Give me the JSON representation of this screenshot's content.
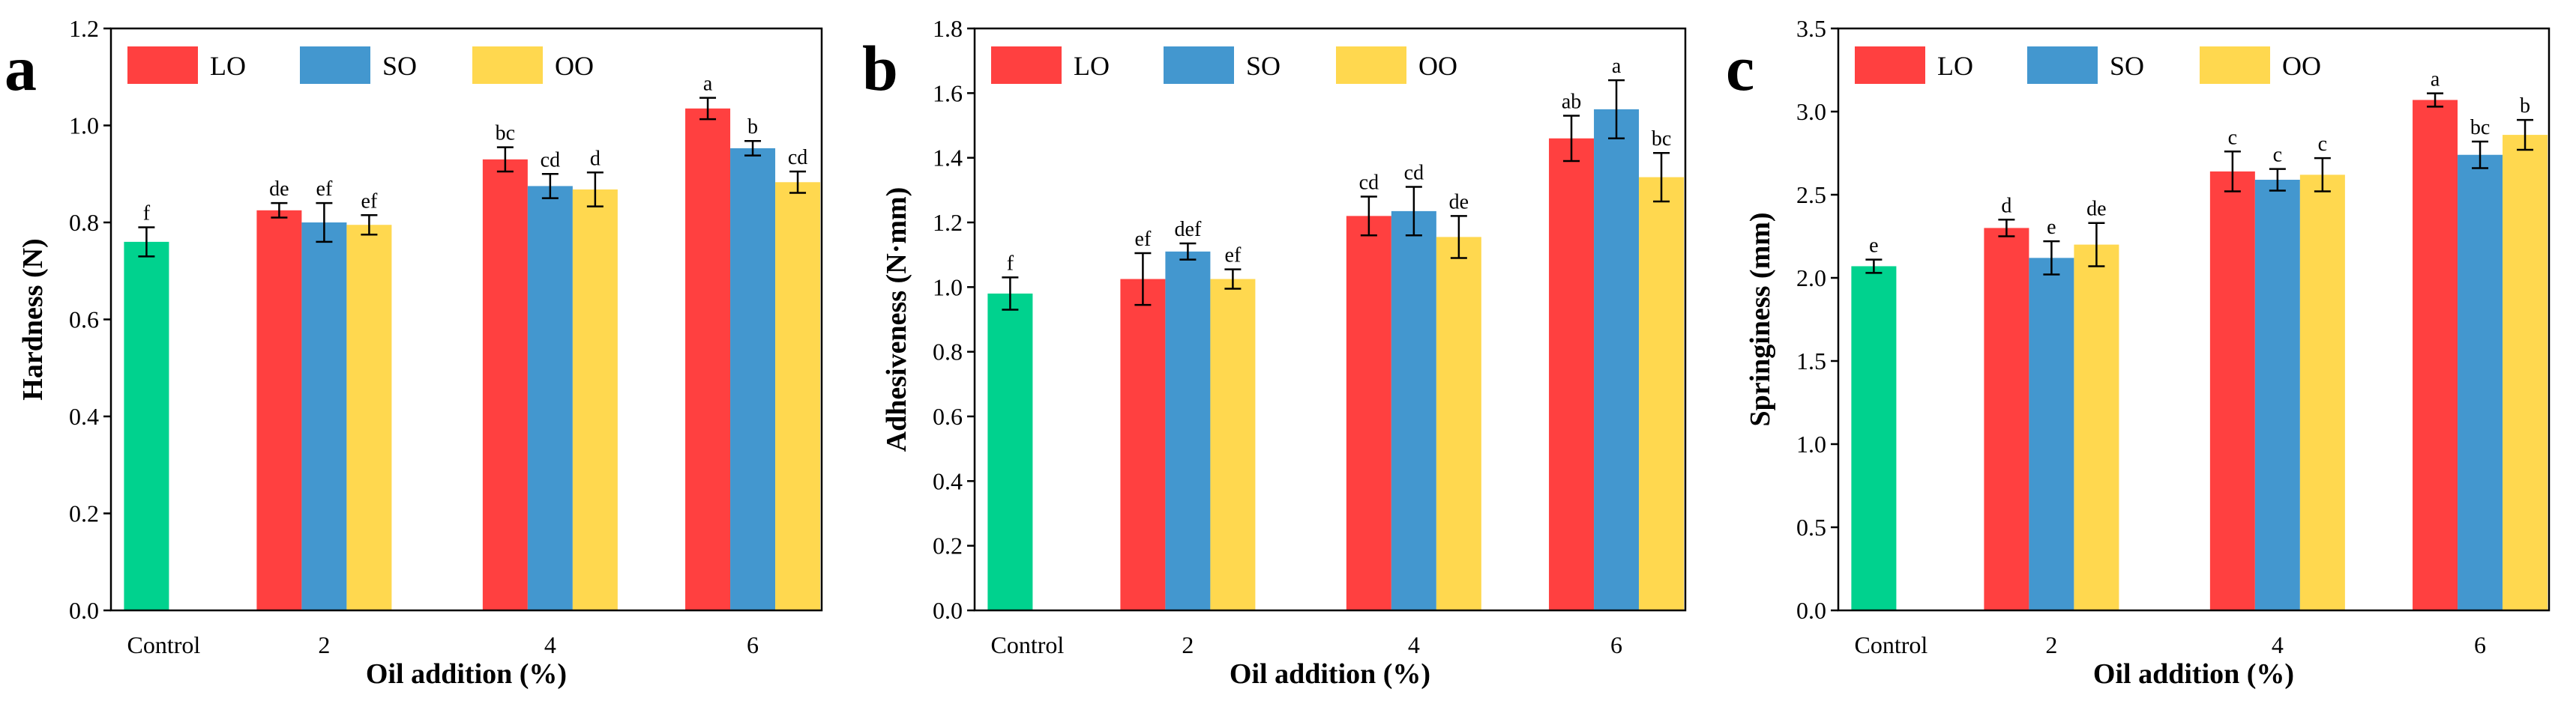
{
  "chart_data": [
    {
      "type": "bar",
      "panel_letter": "a",
      "ylabel": "Hardness (N)",
      "xlabel": "Oil addition (%)",
      "ylim": [
        0,
        1.2
      ],
      "yticks": [
        0.0,
        0.2,
        0.4,
        0.6,
        0.8,
        1.0,
        1.2
      ],
      "ytick_labels": [
        "0.0",
        "0.2",
        "0.4",
        "0.6",
        "0.8",
        "1.0",
        "1.2"
      ],
      "control": {
        "label": "Control",
        "value": 0.76,
        "error": 0.03,
        "letter": "f"
      },
      "categories": [
        "2",
        "4",
        "6"
      ],
      "series": [
        {
          "name": "LO",
          "values": [
            0.825,
            0.93,
            1.035
          ],
          "errors": [
            0.015,
            0.025,
            0.022
          ],
          "letters": [
            "de",
            "bc",
            "a"
          ]
        },
        {
          "name": "SO",
          "values": [
            0.8,
            0.875,
            0.953
          ],
          "errors": [
            0.04,
            0.025,
            0.015
          ],
          "letters": [
            "ef",
            "cd",
            "b"
          ]
        },
        {
          "name": "OO",
          "values": [
            0.795,
            0.868,
            0.883
          ],
          "errors": [
            0.02,
            0.035,
            0.022
          ],
          "letters": [
            "ef",
            "d",
            "cd"
          ]
        }
      ],
      "legend": [
        "LO",
        "SO",
        "OO"
      ],
      "legend_position": "top-left"
    },
    {
      "type": "bar",
      "panel_letter": "b",
      "ylabel": "Adhesiveness (N·mm)",
      "xlabel": "Oil addition (%)",
      "ylim": [
        0,
        1.8
      ],
      "yticks": [
        0.0,
        0.2,
        0.4,
        0.6,
        0.8,
        1.0,
        1.2,
        1.4,
        1.6,
        1.8
      ],
      "ytick_labels": [
        "0.0",
        "0.2",
        "0.4",
        "0.6",
        "0.8",
        "1.0",
        "1.2",
        "1.4",
        "1.6",
        "1.8"
      ],
      "control": {
        "label": "Control",
        "value": 0.98,
        "error": 0.05,
        "letter": "f"
      },
      "categories": [
        "2",
        "4",
        "6"
      ],
      "series": [
        {
          "name": "LO",
          "values": [
            1.025,
            1.22,
            1.46
          ],
          "errors": [
            0.08,
            0.06,
            0.07
          ],
          "letters": [
            "ef",
            "cd",
            "ab"
          ]
        },
        {
          "name": "SO",
          "values": [
            1.11,
            1.235,
            1.55
          ],
          "errors": [
            0.025,
            0.075,
            0.09
          ],
          "letters": [
            "def",
            "cd",
            "a"
          ]
        },
        {
          "name": "OO",
          "values": [
            1.025,
            1.155,
            1.34
          ],
          "errors": [
            0.03,
            0.065,
            0.075
          ],
          "letters": [
            "ef",
            "de",
            "bc"
          ]
        }
      ],
      "legend": [
        "LO",
        "SO",
        "OO"
      ],
      "legend_position": "top-left"
    },
    {
      "type": "bar",
      "panel_letter": "c",
      "ylabel": "Springiness (mm)",
      "xlabel": "Oil addition (%)",
      "ylim": [
        0,
        3.5
      ],
      "yticks": [
        0.0,
        0.5,
        1.0,
        1.5,
        2.0,
        2.5,
        3.0,
        3.5
      ],
      "ytick_labels": [
        "0.0",
        "0.5",
        "1.0",
        "1.5",
        "2.0",
        "2.5",
        "3.0",
        "3.5"
      ],
      "control": {
        "label": "Control",
        "value": 2.07,
        "error": 0.04,
        "letter": "e"
      },
      "categories": [
        "2",
        "4",
        "6"
      ],
      "series": [
        {
          "name": "LO",
          "values": [
            2.3,
            2.64,
            3.07
          ],
          "errors": [
            0.05,
            0.12,
            0.04
          ],
          "letters": [
            "d",
            "c",
            "a"
          ]
        },
        {
          "name": "SO",
          "values": [
            2.12,
            2.59,
            2.74
          ],
          "errors": [
            0.1,
            0.065,
            0.08
          ],
          "letters": [
            "e",
            "c",
            "bc"
          ]
        },
        {
          "name": "OO",
          "values": [
            2.2,
            2.62,
            2.86
          ],
          "errors": [
            0.13,
            0.1,
            0.09
          ],
          "letters": [
            "de",
            "c",
            "b"
          ]
        }
      ],
      "legend": [
        "LO",
        "SO",
        "OO"
      ],
      "legend_position": "top-left"
    }
  ],
  "colors": {
    "control": "#00D28E",
    "LO": "#FF4040",
    "SO": "#4397CF",
    "OO": "#FFD84F",
    "axis": "#000000"
  }
}
